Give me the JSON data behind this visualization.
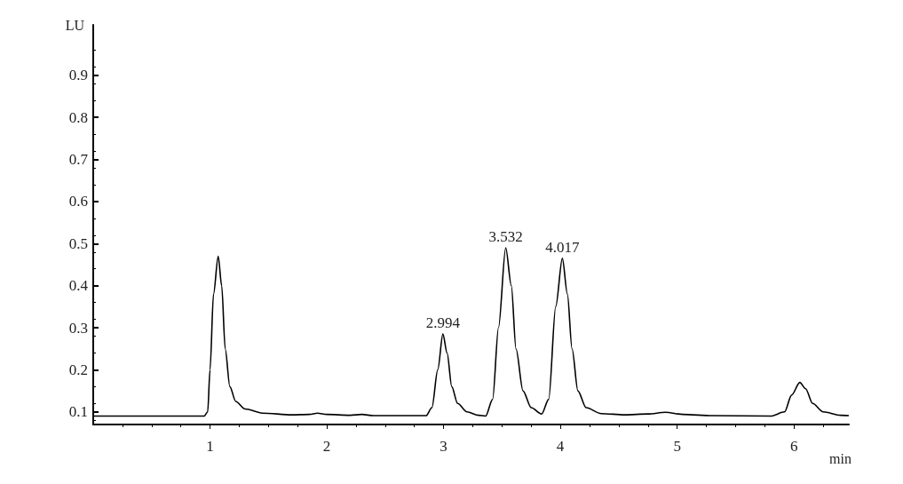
{
  "chart_data": {
    "type": "line",
    "xlabel": "min",
    "ylabel": "LU",
    "x": [
      0,
      0.95,
      0.98,
      1.0,
      1.03,
      1.07,
      1.1,
      1.13,
      1.17,
      1.22,
      1.3,
      1.45,
      1.7,
      1.85,
      1.92,
      2.0,
      2.2,
      2.3,
      2.4,
      2.85,
      2.9,
      2.95,
      2.994,
      3.03,
      3.07,
      3.12,
      3.2,
      3.3,
      3.36,
      3.42,
      3.47,
      3.532,
      3.58,
      3.62,
      3.68,
      3.75,
      3.84,
      3.9,
      3.96,
      4.017,
      4.06,
      4.1,
      4.15,
      4.22,
      4.35,
      4.55,
      4.75,
      4.9,
      5.05,
      5.3,
      5.8,
      5.92,
      5.98,
      6.05,
      6.1,
      6.16,
      6.25,
      6.4,
      6.47
    ],
    "series": [
      {
        "color": "#000000",
        "values": [
          0.09,
          0.09,
          0.1,
          0.2,
          0.38,
          0.47,
          0.4,
          0.25,
          0.16,
          0.125,
          0.107,
          0.097,
          0.093,
          0.094,
          0.097,
          0.094,
          0.092,
          0.094,
          0.091,
          0.091,
          0.11,
          0.2,
          0.285,
          0.24,
          0.16,
          0.12,
          0.1,
          0.092,
          0.09,
          0.13,
          0.3,
          0.49,
          0.4,
          0.25,
          0.15,
          0.11,
          0.095,
          0.13,
          0.35,
          0.465,
          0.38,
          0.25,
          0.15,
          0.11,
          0.096,
          0.093,
          0.095,
          0.099,
          0.094,
          0.091,
          0.09,
          0.1,
          0.14,
          0.17,
          0.155,
          0.12,
          0.1,
          0.092,
          0.091
        ]
      }
    ],
    "annotations": [
      {
        "text": "2.994",
        "x": 2.994,
        "y": 0.285
      },
      {
        "text": "3.532",
        "x": 3.532,
        "y": 0.49
      },
      {
        "text": "4.017",
        "x": 4.017,
        "y": 0.465
      }
    ],
    "xlim": [
      0,
      6.47
    ],
    "xticks": [
      1,
      2,
      3,
      4,
      5,
      6
    ],
    "ylim": [
      0.07,
      1.02
    ],
    "yticks": [
      0.1,
      0.2,
      0.3,
      0.4,
      0.5,
      0.6,
      0.7,
      0.8,
      0.9
    ],
    "grid": false,
    "marker": "none",
    "line_style": "solid"
  }
}
